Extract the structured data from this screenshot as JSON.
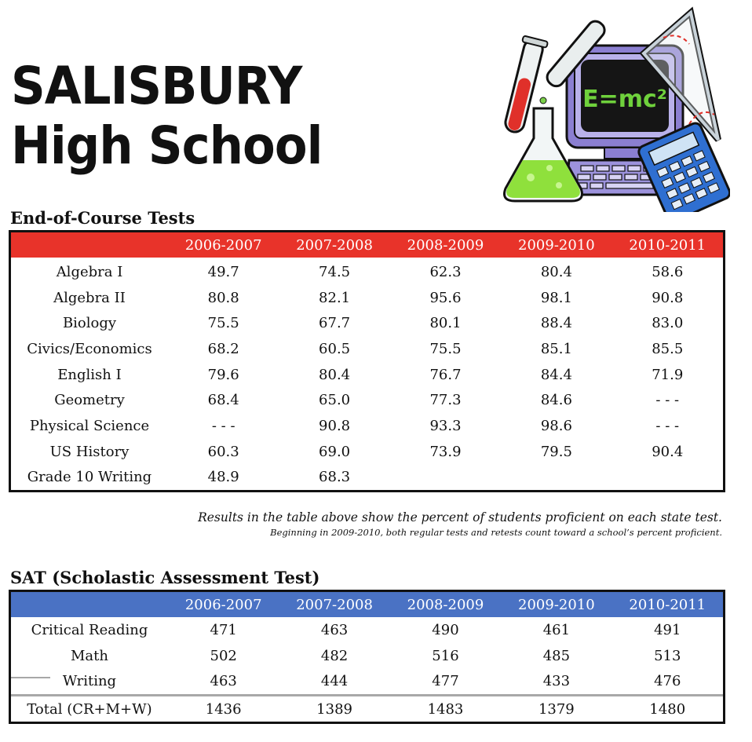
{
  "school": {
    "name_line1": "SALISBURY",
    "name_line2": "High School"
  },
  "clipart": {
    "formula": "E=mc²",
    "icons": [
      "test-tube-icon",
      "flask-icon",
      "computer-icon",
      "calculator-icon",
      "triangle-ruler-icon"
    ]
  },
  "eoc": {
    "heading": "End-of-Course Tests",
    "header_color": "#e8332a",
    "years": [
      "2006-2007",
      "2007-2008",
      "2008-2009",
      "2009-2010",
      "2010-2011"
    ],
    "rows": [
      {
        "subject": "Algebra I",
        "values": [
          "49.7",
          "74.5",
          "62.3",
          "80.4",
          "58.6"
        ]
      },
      {
        "subject": "Algebra II",
        "values": [
          "80.8",
          "82.1",
          "95.6",
          "98.1",
          "90.8"
        ]
      },
      {
        "subject": "Biology",
        "values": [
          "75.5",
          "67.7",
          "80.1",
          "88.4",
          "83.0"
        ]
      },
      {
        "subject": "Civics/Economics",
        "values": [
          "68.2",
          "60.5",
          "75.5",
          "85.1",
          "85.5"
        ]
      },
      {
        "subject": "English I",
        "values": [
          "79.6",
          "80.4",
          "76.7",
          "84.4",
          "71.9"
        ]
      },
      {
        "subject": "Geometry",
        "values": [
          "68.4",
          "65.0",
          "77.3",
          "84.6",
          "- - -"
        ]
      },
      {
        "subject": "Physical Science",
        "values": [
          "- - -",
          "90.8",
          "93.3",
          "98.6",
          "- - -"
        ]
      },
      {
        "subject": "US History",
        "values": [
          "60.3",
          "69.0",
          "73.9",
          "79.5",
          "90.4"
        ]
      },
      {
        "subject": "Grade 10 Writing",
        "values": [
          "48.9",
          "68.3",
          "",
          "",
          ""
        ]
      }
    ]
  },
  "notes": {
    "line1": "Results in the table above show the percent of students proficient on each state test.",
    "line2": "Beginning in 2009-2010, both regular tests and retests count toward a school’s percent proficient."
  },
  "sat": {
    "heading": "SAT (Scholastic Assessment Test)",
    "header_color": "#4a72c4",
    "years": [
      "2006-2007",
      "2007-2008",
      "2008-2009",
      "2009-2010",
      "2010-2011"
    ],
    "rows": [
      {
        "subject": "Critical Reading",
        "values": [
          "471",
          "463",
          "490",
          "461",
          "491"
        ]
      },
      {
        "subject": "Math",
        "values": [
          "502",
          "482",
          "516",
          "485",
          "513"
        ]
      },
      {
        "subject": "Writing",
        "values": [
          "463",
          "444",
          "477",
          "433",
          "476"
        ]
      }
    ],
    "total": {
      "subject": "Total (CR+M+W)",
      "values": [
        "1436",
        "1389",
        "1483",
        "1379",
        "1480"
      ]
    }
  }
}
